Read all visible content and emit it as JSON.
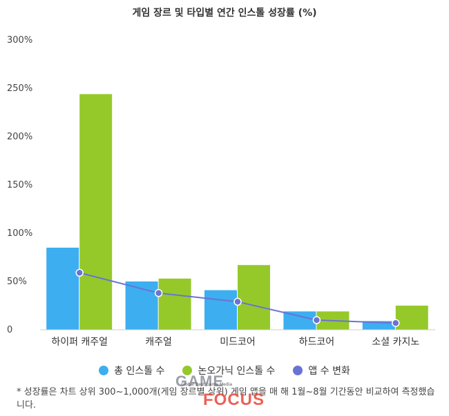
{
  "chart_data": {
    "type": "bar",
    "title": "게임 장르 및 타입별 연간 인스톨 성장률 (%)",
    "categories": [
      "하이퍼 캐주얼",
      "캐주얼",
      "미드코어",
      "하드코어",
      "소셜 카지노"
    ],
    "series": [
      {
        "name": "총 인스톨 수",
        "type": "bar",
        "color": "#3daef0",
        "values": [
          85,
          50,
          41,
          19,
          9
        ]
      },
      {
        "name": "논오가닉 인스톨 수",
        "type": "bar",
        "color": "#95c92a",
        "values": [
          244,
          53,
          67,
          19,
          25
        ]
      },
      {
        "name": "앱 수 변화",
        "type": "line",
        "color": "#6a72d4",
        "values": [
          59,
          38,
          29,
          10,
          7
        ]
      }
    ],
    "ylim": [
      0,
      300
    ],
    "yticks": [
      "0",
      "50%",
      "100%",
      "150%",
      "200%",
      "250%",
      "300%"
    ],
    "legend_position": "bottom",
    "grid": false
  },
  "footnote": "* 성장률은 차트 상위 300~1,000개(게임 장르별 상위) 게임 앱을 매 해 1월~8월 기간동안 비교하여 측정했습니다.",
  "watermark": {
    "line1": "GAME",
    "line2": "FOCUS",
    "small": "Global Best Game Media"
  }
}
